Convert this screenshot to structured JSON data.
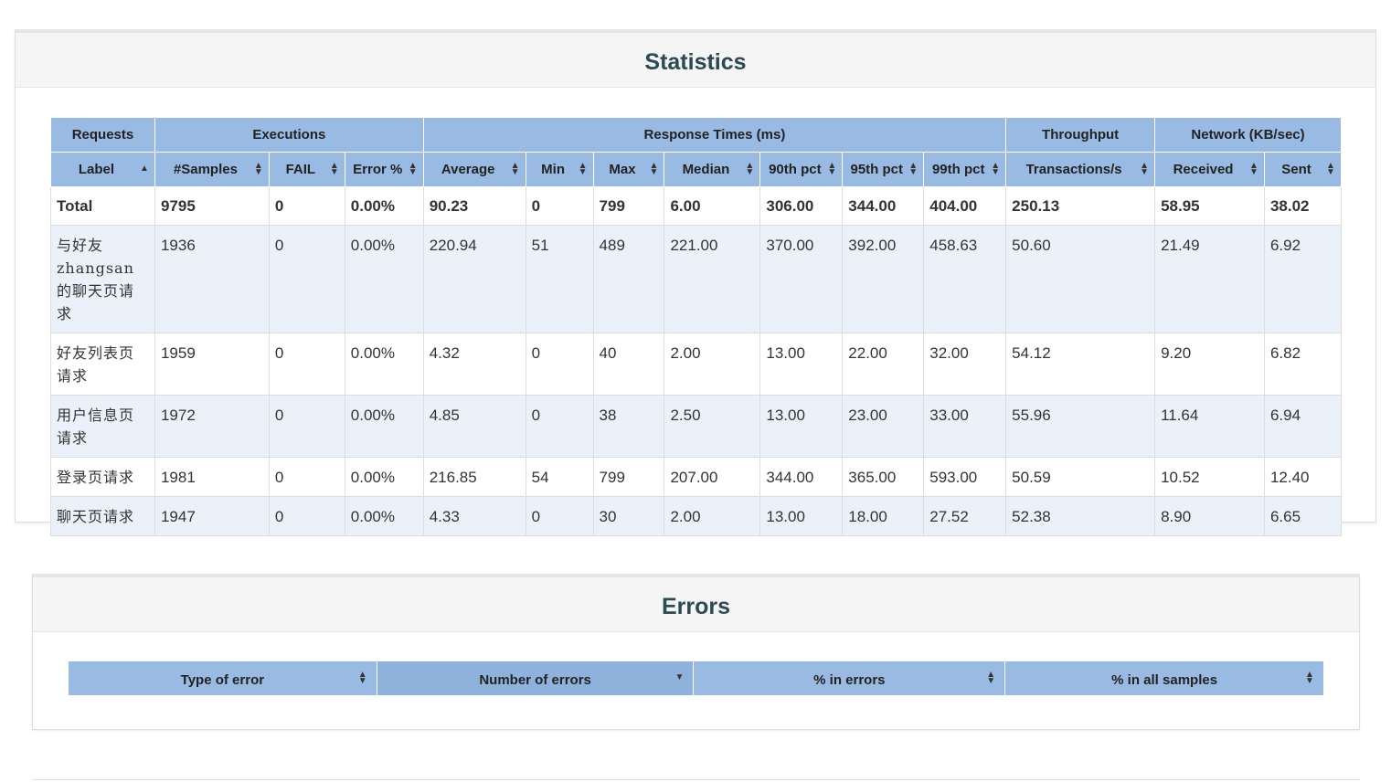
{
  "statistics": {
    "title": "Statistics",
    "groups": [
      "Requests",
      "Executions",
      "Response Times (ms)",
      "Throughput",
      "Network (KB/sec)"
    ],
    "columns": [
      "Label",
      "#Samples",
      "FAIL",
      "Error %",
      "Average",
      "Min",
      "Max",
      "Median",
      "90th pct",
      "95th pct",
      "99th pct",
      "Transactions/s",
      "Received",
      "Sent"
    ],
    "sorted_column": "Label",
    "total": [
      "Total",
      "9795",
      "0",
      "0.00%",
      "90.23",
      "0",
      "799",
      "6.00",
      "306.00",
      "344.00",
      "404.00",
      "250.13",
      "58.95",
      "38.02"
    ],
    "rows": [
      [
        "与好友zhangsan的聊天页请求",
        "1936",
        "0",
        "0.00%",
        "220.94",
        "51",
        "489",
        "221.00",
        "370.00",
        "392.00",
        "458.63",
        "50.60",
        "21.49",
        "6.92"
      ],
      [
        "好友列表页请求",
        "1959",
        "0",
        "0.00%",
        "4.32",
        "0",
        "40",
        "2.00",
        "13.00",
        "22.00",
        "32.00",
        "54.12",
        "9.20",
        "6.82"
      ],
      [
        "用户信息页请求",
        "1972",
        "0",
        "0.00%",
        "4.85",
        "0",
        "38",
        "2.50",
        "13.00",
        "23.00",
        "33.00",
        "55.96",
        "11.64",
        "6.94"
      ],
      [
        "登录页请求",
        "1981",
        "0",
        "0.00%",
        "216.85",
        "54",
        "799",
        "207.00",
        "344.00",
        "365.00",
        "593.00",
        "50.59",
        "10.52",
        "12.40"
      ],
      [
        "聊天页请求",
        "1947",
        "0",
        "0.00%",
        "4.33",
        "0",
        "30",
        "2.00",
        "13.00",
        "18.00",
        "27.52",
        "52.38",
        "8.90",
        "6.65"
      ]
    ]
  },
  "errors": {
    "title": "Errors",
    "columns": [
      "Type of error",
      "Number of errors",
      "% in errors",
      "% in all samples"
    ],
    "sorted_column": "Number of errors"
  },
  "colors": {
    "header_bg": "#99bbe3",
    "row_alt_bg": "#eaf1fa",
    "title_color": "#2c4a52"
  }
}
